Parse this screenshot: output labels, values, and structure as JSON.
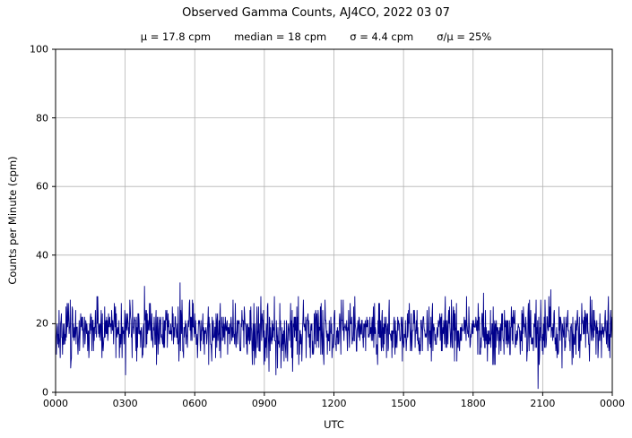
{
  "chart_data": {
    "type": "line",
    "title": "Observed Gamma Counts, AJ4CO, 2022 03 07",
    "stats": {
      "mean": "μ = 17.8 cpm",
      "median": "median = 18 cpm",
      "sigma": "σ = 4.4 cpm",
      "sigma_over_mu": "σ/μ = 25%"
    },
    "xlabel": "UTC",
    "ylabel": "Counts per Minute (cpm)",
    "x_tick_labels": [
      "0000",
      "0300",
      "0600",
      "0900",
      "1200",
      "1500",
      "1800",
      "2100",
      "0000"
    ],
    "y_tick_labels": [
      "0",
      "20",
      "40",
      "60",
      "80",
      "100"
    ],
    "y_tick_values": [
      0,
      20,
      40,
      60,
      80,
      100
    ],
    "ylim": [
      0,
      100
    ],
    "x_span_minutes": 1440,
    "n_points": 1441,
    "grid": true,
    "line_color": "#00008b",
    "grid_color": "#b3b3b3",
    "series": {
      "name": "observed gamma counts",
      "mean_cpm": 17.8,
      "median_cpm": 18,
      "sigma_cpm": 4.4,
      "approx_min_cpm": 4,
      "approx_max_cpm": 31,
      "seed": 20220307
    }
  }
}
